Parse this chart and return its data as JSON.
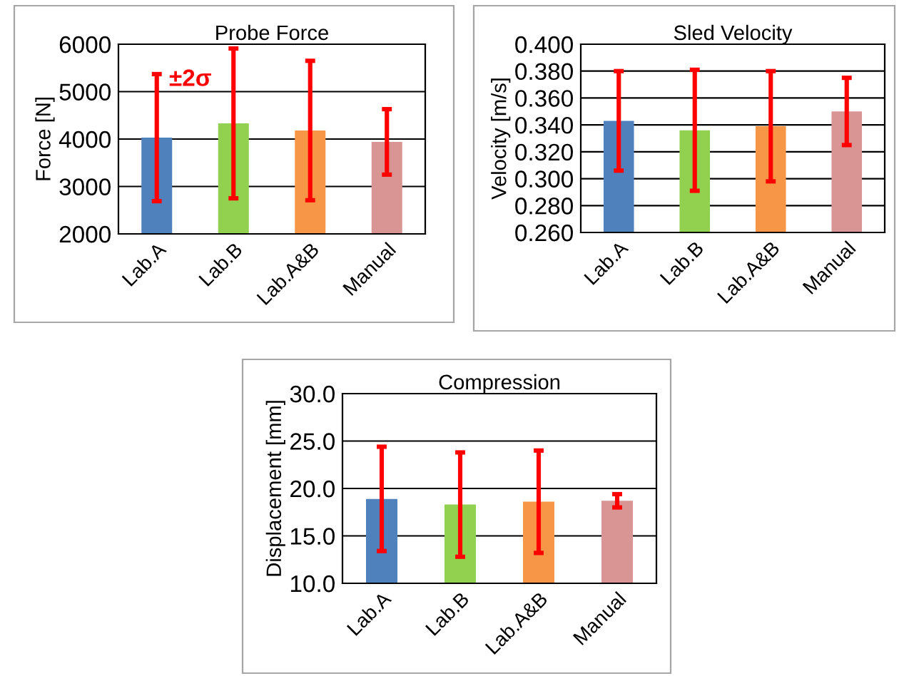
{
  "chart_data": [
    {
      "type": "bar",
      "title": "Probe Force",
      "ylabel": "Force [N]",
      "categories": [
        "Lab.A",
        "Lab.B",
        "Lab.A&B",
        "Manual"
      ],
      "values": [
        4030,
        4330,
        4180,
        3940
      ],
      "errors": [
        1340,
        1580,
        1470,
        690
      ],
      "colors": [
        "#4f81bd",
        "#92d050",
        "#f79646",
        "#d99594"
      ],
      "ylim": [
        2000,
        6000
      ],
      "yticks": [
        2000,
        3000,
        4000,
        5000,
        6000
      ],
      "grid": "y",
      "annotations": [
        "±2σ"
      ]
    },
    {
      "type": "bar",
      "title": "Sled Velocity",
      "ylabel": "Velocity [m/s]",
      "categories": [
        "Lab.A",
        "Lab.B",
        "Lab.A&B",
        "Manual"
      ],
      "values": [
        0.343,
        0.336,
        0.339,
        0.35
      ],
      "errors": [
        0.037,
        0.045,
        0.041,
        0.025
      ],
      "colors": [
        "#4f81bd",
        "#92d050",
        "#f79646",
        "#d99594"
      ],
      "ylim": [
        0.26,
        0.4
      ],
      "yticks": [
        {
          "value": 0.26,
          "label": "0.260"
        },
        {
          "value": 0.28,
          "label": "0.280"
        },
        {
          "value": 0.3,
          "label": "0.300"
        },
        {
          "value": 0.32,
          "label": "0.320"
        },
        {
          "value": 0.34,
          "label": "0.340"
        },
        {
          "value": 0.36,
          "label": "0.360"
        },
        {
          "value": 0.38,
          "label": "0.380"
        },
        {
          "value": 0.4,
          "label": "0.400"
        }
      ],
      "grid": "y"
    },
    {
      "type": "bar",
      "title": "Compression",
      "ylabel": "Displacement [mm]",
      "categories": [
        "Lab.A",
        "Lab.B",
        "Lab.A&B",
        "Manual"
      ],
      "values": [
        18.9,
        18.3,
        18.6,
        18.7
      ],
      "errors": [
        5.5,
        5.5,
        5.4,
        0.7
      ],
      "colors": [
        "#4f81bd",
        "#92d050",
        "#f79646",
        "#d99594"
      ],
      "ylim": [
        10,
        30
      ],
      "yticks": [
        {
          "value": 10,
          "label": "10.0"
        },
        {
          "value": 15,
          "label": "15.0"
        },
        {
          "value": 20,
          "label": "20.0"
        },
        {
          "value": 25,
          "label": "25.0"
        },
        {
          "value": 30,
          "label": "30.0"
        }
      ],
      "grid": "y"
    }
  ]
}
